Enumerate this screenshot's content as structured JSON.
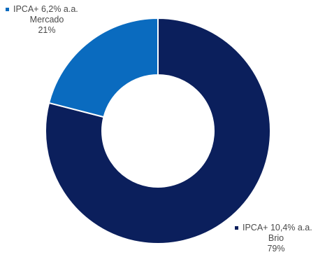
{
  "chart_data": {
    "type": "pie",
    "variant": "donut",
    "slices": [
      {
        "name": "IPCA+ 6,2% a.a.",
        "label": "Mercado",
        "value": 21,
        "value_text": "21%",
        "color": "#0a6bbf"
      },
      {
        "name": "IPCA+ 10,4% a.a.",
        "label": "Brio",
        "value": 79,
        "value_text": "79%",
        "color": "#0b1f5c"
      }
    ]
  }
}
